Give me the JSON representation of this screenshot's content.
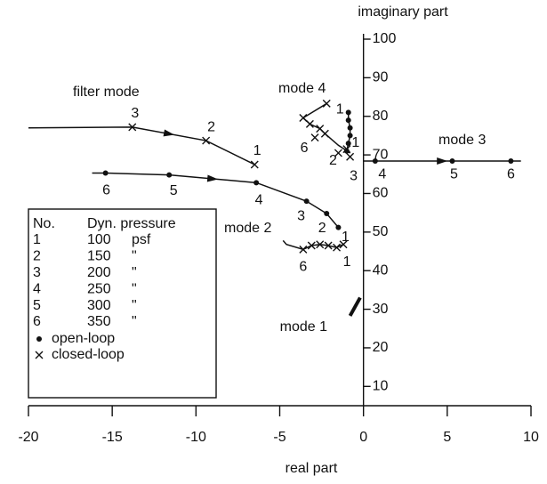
{
  "chart_data": {
    "type": "root-locus",
    "x_label": "real part",
    "y_label": "imaginary part",
    "xlim": [
      -20,
      10
    ],
    "ylim": [
      5,
      100
    ],
    "xticks": [
      -20,
      -15,
      -10,
      -5,
      0,
      5,
      10
    ],
    "yticks": [
      10,
      20,
      30,
      40,
      50,
      60,
      70,
      80,
      90,
      100
    ],
    "loci": [
      {
        "name": "filter mode",
        "curves": [
          {
            "x": [
              -20,
              -13.8,
              -9.4,
              -6.5
            ],
            "y": [
              77,
              77.2,
              73.7,
              67.5
            ]
          },
          {
            "x": [
              -16.2,
              -15.4,
              -11.6,
              -6.4,
              -3.4,
              -2.2,
              -1.5
            ],
            "y": [
              65.3,
              65.3,
              64.8,
              62.8,
              58,
              54.8,
              51.2
            ]
          }
        ],
        "closed_loop": {
          "labels": [
            "1",
            "2",
            "3"
          ],
          "x": [
            -6.5,
            -9.4,
            -13.8
          ],
          "y": [
            67.5,
            73.7,
            77.2
          ]
        },
        "open_loop": {
          "labels": [
            "1",
            "2",
            "3",
            "4",
            "5",
            "6"
          ],
          "x": [
            -1.5,
            -2.2,
            -3.4,
            -6.4,
            -11.6,
            -15.4
          ],
          "y": [
            51.2,
            54.8,
            58,
            62.8,
            64.8,
            65.3
          ]
        }
      },
      {
        "name": "mode 1",
        "curves": [
          {
            "x": [
              -0.8,
              -0.2
            ],
            "y": [
              28.3,
              33
            ]
          }
        ],
        "closed_loop": {
          "labels": [],
          "x": [],
          "y": []
        },
        "open_loop": {
          "labels": [],
          "x": [],
          "y": []
        }
      },
      {
        "name": "mode 2",
        "curves": [
          {
            "x": [
              -4.8,
              -4.6,
              -3.6,
              -3.1,
              -2.6,
              -2.1,
              -1.6,
              -1.2
            ],
            "y": [
              47.8,
              46.8,
              45.5,
              46.5,
              46.8,
              46.5,
              46.0,
              46.8
            ]
          }
        ],
        "closed_loop": {
          "labels": [
            "6",
            null,
            null,
            null,
            null,
            "1"
          ],
          "x": [
            -3.6,
            -3.1,
            -2.6,
            -2.1,
            -1.6,
            -1.2
          ],
          "y": [
            45.5,
            46.5,
            46.8,
            46.5,
            46.0,
            46.8
          ]
        },
        "open_loop": {
          "labels": [],
          "x": [],
          "y": []
        }
      },
      {
        "name": "mode 3",
        "curves": [
          {
            "x": [
              0,
              9.4
            ],
            "y": [
              68.4,
              68.4
            ]
          }
        ],
        "closed_loop": {
          "labels": [
            "1",
            "2",
            "3"
          ],
          "x": [
            -1.0,
            -1.5,
            -0.8
          ],
          "y": [
            71.5,
            70.5,
            69.5
          ]
        },
        "open_loop": {
          "labels": [
            "4",
            "5",
            "6"
          ],
          "x": [
            0.7,
            5.3,
            8.8
          ],
          "y": [
            68.4,
            68.4,
            68.4
          ]
        }
      },
      {
        "name": "mode 4",
        "curves": [
          {
            "x": [
              -2.2,
              -3.6,
              -3.2,
              -2.6,
              -2.3,
              -1.5,
              -0.8
            ],
            "y": [
              83.3,
              79.6,
              78,
              76.8,
              75.5,
              72.5,
              70.5
            ]
          },
          {
            "x": [
              -0.9,
              -0.9,
              -0.8,
              -0.8,
              -0.9,
              -1.0
            ],
            "y": [
              81,
              79,
              77,
              75,
              73,
              71
            ]
          }
        ],
        "closed_loop": {
          "labels": [
            "1",
            null,
            null,
            null,
            null,
            "6"
          ],
          "x": [
            -2.2,
            -3.6,
            -3.2,
            -2.6,
            -2.3,
            -2.9
          ],
          "y": [
            83.3,
            79.6,
            78,
            76.8,
            75.5,
            74.5
          ]
        },
        "open_loop": {
          "labels": [],
          "x": [
            -0.9,
            -0.9,
            -0.8,
            -0.8,
            -0.9,
            -1.0
          ],
          "y": [
            81,
            79,
            77,
            75,
            73,
            71
          ]
        }
      }
    ],
    "legend": {
      "headers": [
        "No.",
        "Dyn. pressure"
      ],
      "rows": [
        {
          "no": 1,
          "pressure": 100,
          "unit": "psf"
        },
        {
          "no": 2,
          "pressure": 150,
          "unit": "\""
        },
        {
          "no": 3,
          "pressure": 200,
          "unit": "\""
        },
        {
          "no": 4,
          "pressure": 250,
          "unit": "\""
        },
        {
          "no": 5,
          "pressure": 300,
          "unit": "\""
        },
        {
          "no": 6,
          "pressure": 350,
          "unit": "\""
        }
      ],
      "markers": [
        "open-loop",
        "closed-loop"
      ]
    }
  }
}
